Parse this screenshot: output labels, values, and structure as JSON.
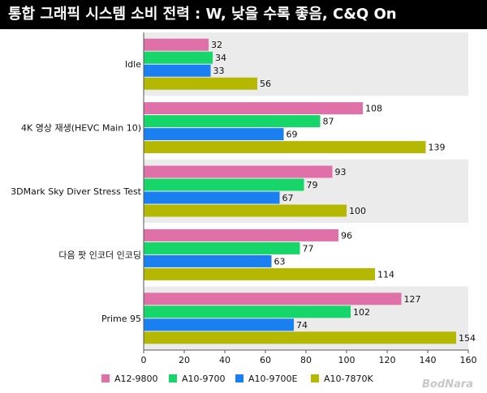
{
  "title": "통합 그래픽 시스템 소비 전력 : W, 낮을 수록 좋음, C&Q On",
  "watermark": "BodNara",
  "chart_data": {
    "type": "bar",
    "orientation": "horizontal",
    "categories": [
      "Idle",
      "4K 영상 재생(HEVC Main 10)",
      "3DMark Sky Diver Stress Test",
      "다음 팟 인코더 인코딩",
      "Prime 95"
    ],
    "series": [
      {
        "name": "A12-9800",
        "color": "#e070a8",
        "values": [
          32,
          108,
          93,
          96,
          127
        ]
      },
      {
        "name": "A10-9700",
        "color": "#16d66a",
        "values": [
          34,
          87,
          79,
          77,
          102
        ]
      },
      {
        "name": "A10-9700E",
        "color": "#1a7ff0",
        "values": [
          33,
          69,
          67,
          63,
          74
        ]
      },
      {
        "name": "A10-7870K",
        "color": "#b5b800",
        "values": [
          56,
          139,
          100,
          114,
          154
        ]
      }
    ],
    "xlim": [
      0,
      160
    ],
    "xticks": [
      0,
      20,
      40,
      60,
      80,
      100,
      120,
      140,
      160
    ],
    "legend_position": "bottom",
    "grid": false,
    "band_colors": [
      "#ebebeb",
      "#ffffff"
    ]
  }
}
